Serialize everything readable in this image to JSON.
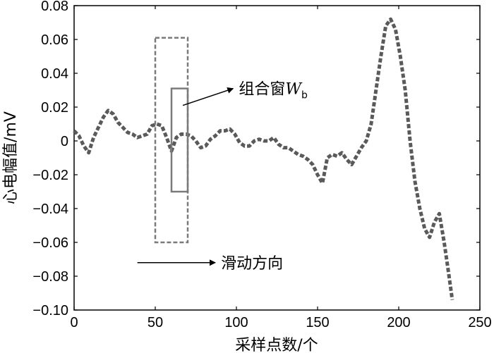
{
  "chart_data": {
    "type": "line",
    "xlabel": "采样点数/个",
    "ylabel": "心电幅值/mV",
    "xlim": [
      0,
      250
    ],
    "ylim": [
      -0.1,
      0.08
    ],
    "x_ticks": [
      {
        "value": 0,
        "label": "0"
      },
      {
        "value": 50,
        "label": "50"
      },
      {
        "value": 100,
        "label": "100"
      },
      {
        "value": 150,
        "label": "150"
      },
      {
        "value": 200,
        "label": "200"
      },
      {
        "value": 250,
        "label": "250"
      }
    ],
    "y_ticks": [
      {
        "value": 0.08,
        "label": "0.08"
      },
      {
        "value": 0.06,
        "label": "0.06"
      },
      {
        "value": 0.04,
        "label": "0.04"
      },
      {
        "value": 0.02,
        "label": "0.02"
      },
      {
        "value": 0,
        "label": "0"
      },
      {
        "value": -0.02,
        "label": "−0.02"
      },
      {
        "value": -0.04,
        "label": "−0.04"
      },
      {
        "value": -0.06,
        "label": "−0.06"
      },
      {
        "value": -0.08,
        "label": "−0.08"
      },
      {
        "value": -0.1,
        "label": "−0.10"
      }
    ],
    "grid": false,
    "series": [
      {
        "color": "#5a5a5a",
        "style": "dashed",
        "x": [
          0,
          3,
          6,
          9,
          12,
          15,
          18,
          21,
          24,
          27,
          30,
          33,
          36,
          39,
          42,
          45,
          48,
          51,
          54,
          57,
          60,
          63,
          66,
          69,
          72,
          75,
          78,
          81,
          84,
          87,
          90,
          93,
          96,
          99,
          102,
          105,
          108,
          111,
          114,
          117,
          120,
          123,
          126,
          129,
          132,
          135,
          138,
          141,
          144,
          147,
          150,
          153,
          156,
          159,
          162,
          165,
          168,
          171,
          174,
          177,
          180,
          183,
          186,
          189,
          192,
          195,
          198,
          201,
          204,
          207,
          210,
          213,
          216,
          219,
          222,
          225,
          228,
          231,
          233
        ],
        "values": [
          0.006,
          0.003,
          -0.003,
          -0.007,
          0.002,
          0.008,
          0.014,
          0.018,
          0.016,
          0.011,
          0.008,
          0.005,
          0.004,
          0.002,
          0.003,
          0.004,
          0.009,
          0.01,
          0.009,
          0.002,
          -0.006,
          0.002,
          0.004,
          0.004,
          0.003,
          0.0,
          -0.004,
          -0.003,
          0.001,
          0.003,
          0.006,
          0.006,
          0.007,
          0.004,
          -0.001,
          -0.003,
          -0.003,
          0.0,
          0.001,
          0.0,
          0.0,
          0.002,
          -0.002,
          -0.004,
          -0.004,
          -0.006,
          -0.008,
          -0.009,
          -0.011,
          -0.014,
          -0.02,
          -0.025,
          -0.01,
          -0.008,
          -0.009,
          -0.007,
          -0.011,
          -0.014,
          -0.009,
          -0.004,
          0.0,
          0.01,
          0.03,
          0.05,
          0.068,
          0.072,
          0.066,
          0.05,
          0.03,
          0.0,
          -0.024,
          -0.04,
          -0.052,
          -0.057,
          -0.048,
          -0.043,
          -0.06,
          -0.08,
          -0.094
        ]
      }
    ],
    "annotations": {
      "outer_box": {
        "x": [
          50,
          70
        ],
        "y": [
          -0.06,
          0.061
        ]
      },
      "inner_box": {
        "x": [
          60,
          70
        ],
        "y": [
          -0.03,
          0.031
        ]
      },
      "combo_label": "组合窗",
      "combo_var": "W",
      "combo_sub": "b",
      "combo_arrow": {
        "from": {
          "x": 67,
          "y": 0.021
        },
        "to": {
          "x": 98,
          "y": 0.031
        }
      },
      "slide_label": "滑动方向",
      "slide_arrow": {
        "from": {
          "x": 39,
          "y": -0.072
        },
        "to": {
          "x": 87,
          "y": -0.072
        }
      }
    }
  }
}
